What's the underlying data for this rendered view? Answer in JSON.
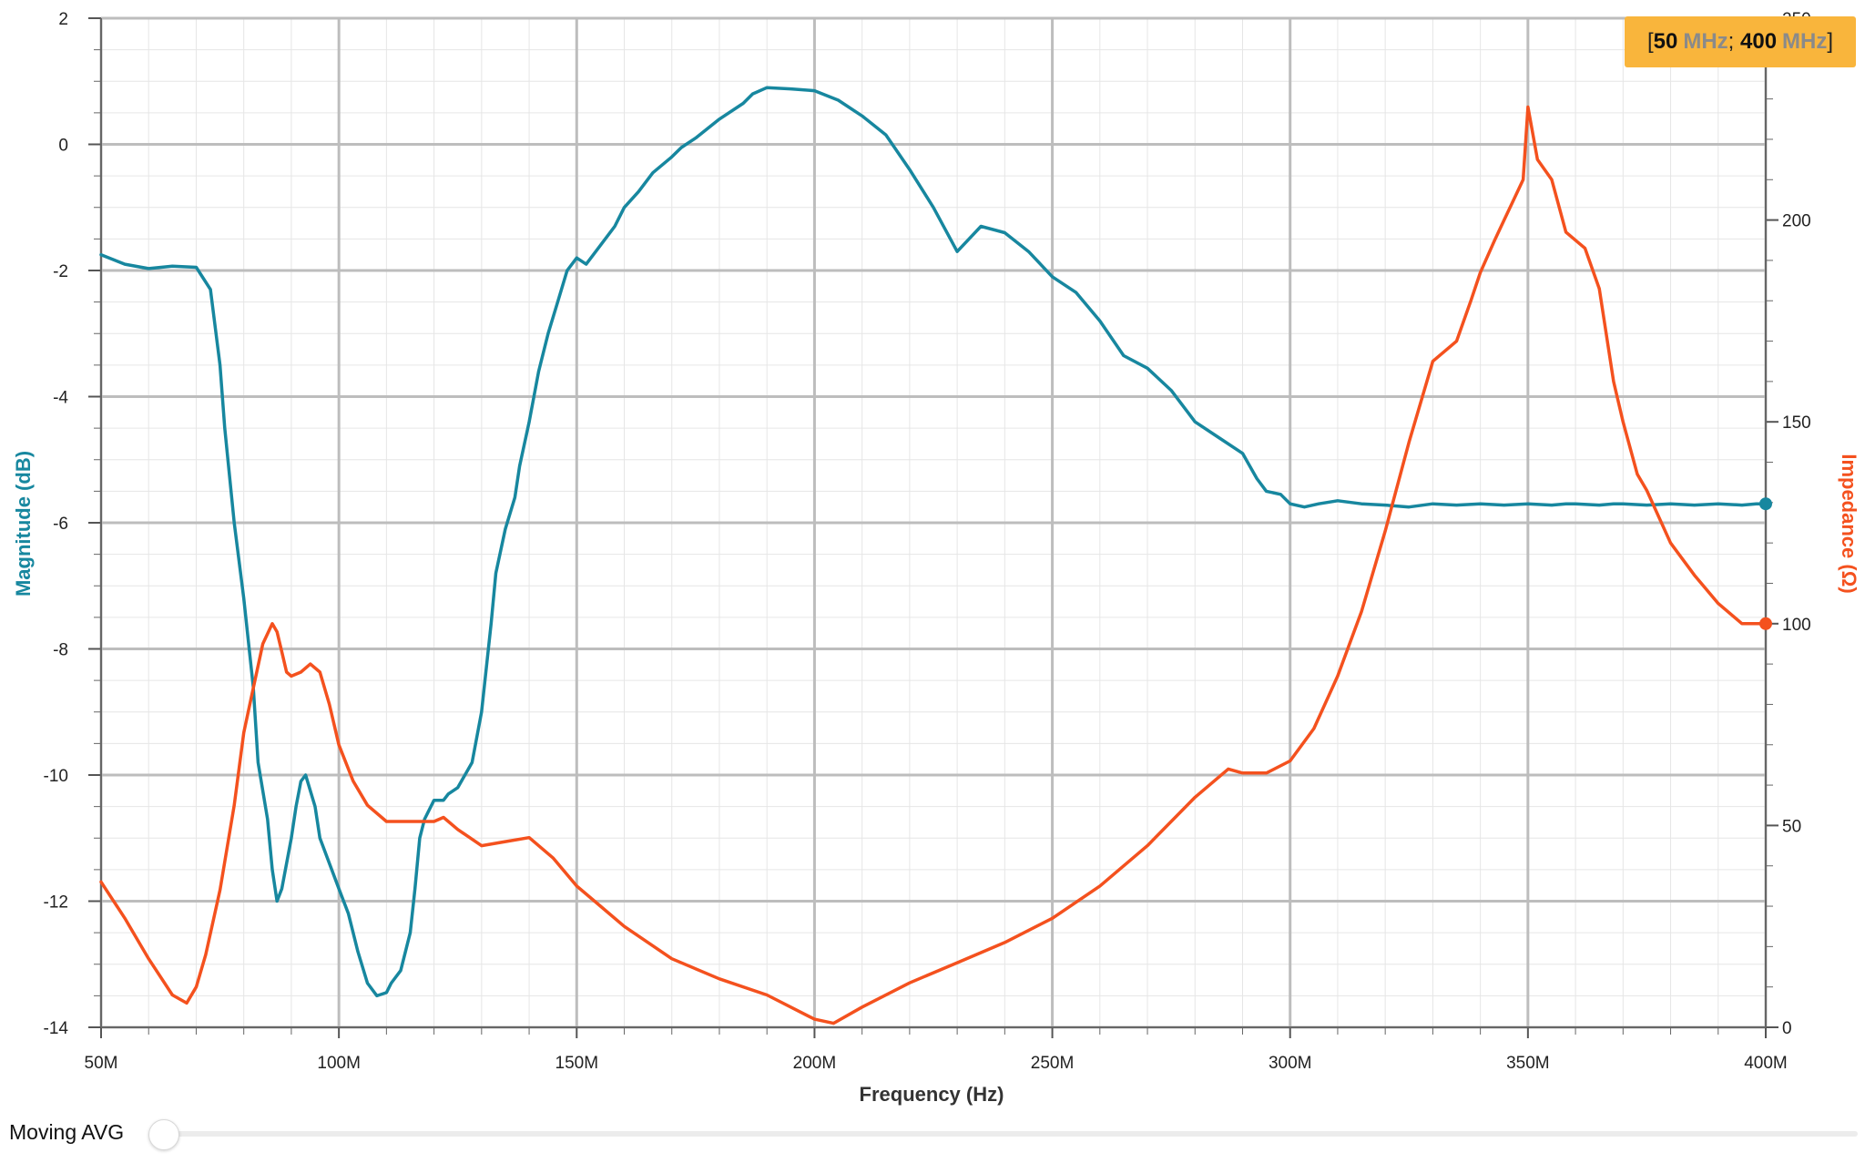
{
  "chart_data": {
    "type": "line",
    "xlabel": "Frequency (Hz)",
    "ylabel_left": "Magnitude (dB)",
    "ylabel_right": "Impedance (Ω)",
    "xlim": [
      50,
      400
    ],
    "ylim_left": [
      -14,
      2
    ],
    "ylim_right": [
      0,
      250
    ],
    "x_unit": "MHz",
    "x_ticks": [
      "50M",
      "100M",
      "150M",
      "200M",
      "250M",
      "300M",
      "350M",
      "400M"
    ],
    "y_ticks_left": [
      "2",
      "0",
      "-2",
      "-4",
      "-6",
      "-8",
      "-10",
      "-12",
      "-14"
    ],
    "y_ticks_right": [
      "250",
      "200",
      "150",
      "100",
      "50",
      "0"
    ],
    "grid": true,
    "series": [
      {
        "name": "Magnitude (dB)",
        "axis": "left",
        "color": "#17879f",
        "x": [
          50,
          55,
          60,
          65,
          70,
          73,
          75,
          76,
          78,
          80,
          82,
          83,
          85,
          86,
          87,
          88,
          89,
          90,
          91,
          92,
          93,
          95,
          96,
          98,
          100,
          102,
          104,
          106,
          108,
          110,
          111,
          113,
          115,
          116,
          117,
          118,
          120,
          122,
          123,
          125,
          128,
          130,
          132,
          133,
          135,
          137,
          138,
          140,
          142,
          144,
          146,
          148,
          150,
          152,
          155,
          158,
          160,
          163,
          166,
          170,
          172,
          175,
          180,
          185,
          187,
          190,
          195,
          200,
          205,
          210,
          215,
          220,
          225,
          230,
          235,
          240,
          245,
          250,
          255,
          260,
          265,
          270,
          275,
          280,
          285,
          290,
          293,
          295,
          298,
          300,
          303,
          306,
          310,
          315,
          320,
          325,
          330,
          335,
          340,
          345,
          350,
          355,
          358,
          360,
          365,
          368,
          370,
          375,
          380,
          385,
          390,
          395,
          398,
          400
        ],
        "y": [
          -1.75,
          -1.9,
          -1.97,
          -1.93,
          -1.95,
          -2.3,
          -3.5,
          -4.5,
          -6.0,
          -7.2,
          -8.6,
          -9.8,
          -10.7,
          -11.5,
          -12.0,
          -11.8,
          -11.4,
          -11.0,
          -10.5,
          -10.1,
          -10.0,
          -10.5,
          -11.0,
          -11.4,
          -11.8,
          -12.2,
          -12.8,
          -13.3,
          -13.5,
          -13.45,
          -13.3,
          -13.1,
          -12.5,
          -11.8,
          -11.0,
          -10.7,
          -10.4,
          -10.4,
          -10.3,
          -10.2,
          -9.8,
          -9.0,
          -7.6,
          -6.8,
          -6.1,
          -5.6,
          -5.1,
          -4.4,
          -3.6,
          -3.0,
          -2.5,
          -2.0,
          -1.8,
          -1.9,
          -1.6,
          -1.3,
          -1.0,
          -0.75,
          -0.45,
          -0.2,
          -0.05,
          0.1,
          0.4,
          0.65,
          0.8,
          0.9,
          0.88,
          0.85,
          0.7,
          0.45,
          0.15,
          -0.4,
          -1.0,
          -1.7,
          -1.3,
          -1.4,
          -1.7,
          -2.1,
          -2.35,
          -2.8,
          -3.35,
          -3.55,
          -3.9,
          -4.4,
          -4.65,
          -4.9,
          -5.3,
          -5.5,
          -5.55,
          -5.7,
          -5.75,
          -5.7,
          -5.65,
          -5.7,
          -5.72,
          -5.75,
          -5.7,
          -5.72,
          -5.7,
          -5.72,
          -5.7,
          -5.72,
          -5.7,
          -5.7,
          -5.72,
          -5.7,
          -5.7,
          -5.72,
          -5.7,
          -5.72,
          -5.7,
          -5.72,
          -5.7,
          -5.7
        ],
        "end_marker": true
      },
      {
        "name": "Impedance (Ω)",
        "axis": "right",
        "color": "#f4511e",
        "x": [
          50,
          55,
          60,
          65,
          68,
          70,
          72,
          75,
          78,
          80,
          82,
          84,
          86,
          87,
          88,
          89,
          90,
          92,
          94,
          96,
          98,
          100,
          103,
          106,
          110,
          115,
          120,
          122,
          125,
          130,
          135,
          140,
          145,
          150,
          155,
          160,
          170,
          180,
          190,
          200,
          204,
          210,
          220,
          230,
          240,
          250,
          260,
          270,
          280,
          287,
          290,
          295,
          300,
          305,
          310,
          315,
          320,
          325,
          330,
          335,
          338,
          340,
          343,
          345,
          347,
          349,
          350,
          352,
          355,
          358,
          360,
          362,
          365,
          368,
          370,
          373,
          375,
          380,
          385,
          390,
          395,
          398,
          400
        ],
        "y": [
          36,
          27,
          17,
          8,
          6,
          10,
          18,
          34,
          55,
          73,
          84,
          95,
          100,
          98,
          93,
          88,
          87,
          88,
          90,
          88,
          80,
          70,
          61,
          55,
          51,
          51,
          51,
          52,
          49,
          45,
          46,
          47,
          42,
          35,
          30,
          25,
          17,
          12,
          8,
          2,
          1,
          5,
          11,
          16,
          21,
          27,
          35,
          45,
          57,
          64,
          63,
          63,
          66,
          74,
          87,
          103,
          123,
          145,
          165,
          170,
          180,
          187,
          195,
          200,
          205,
          210,
          228,
          215,
          210,
          197,
          195,
          193,
          183,
          160,
          150,
          137,
          133,
          120,
          112,
          105,
          100,
          100,
          100
        ],
        "end_marker": true
      }
    ]
  },
  "range_badge": {
    "open": "[",
    "start_value": "50",
    "start_unit": "MHz",
    "separator": "; ",
    "end_value": "400",
    "end_unit": "MHz",
    "close": "]"
  },
  "controls": {
    "moving_avg_label": "Moving AVG",
    "moving_avg_value": 0
  }
}
